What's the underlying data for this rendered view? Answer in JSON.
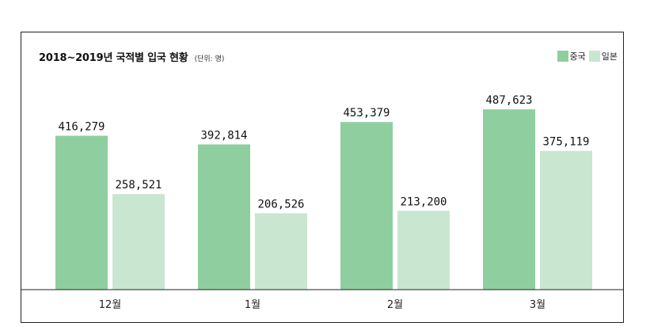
{
  "chart_data": {
    "type": "bar",
    "title": "2018~2019년 국적별 입국 현황",
    "unit_note": "(단위: 명)",
    "categories": [
      "12월",
      "1월",
      "2월",
      "3월"
    ],
    "series": [
      {
        "name": "중국",
        "color": "#8fcf9f",
        "values": [
          416279,
          392814,
          453379,
          487623
        ]
      },
      {
        "name": "일본",
        "color": "#c8e6d0",
        "values": [
          258521,
          206526,
          213200,
          375119
        ]
      }
    ],
    "value_labels": [
      [
        "416,279",
        "392,814",
        "453,379",
        "487,623"
      ],
      [
        "258,521",
        "206,526",
        "213,200",
        "375,119"
      ]
    ],
    "xlabel": "",
    "ylabel": "",
    "ylim": [
      0,
      660000
    ],
    "grid": false,
    "legend_position": "top-right"
  }
}
